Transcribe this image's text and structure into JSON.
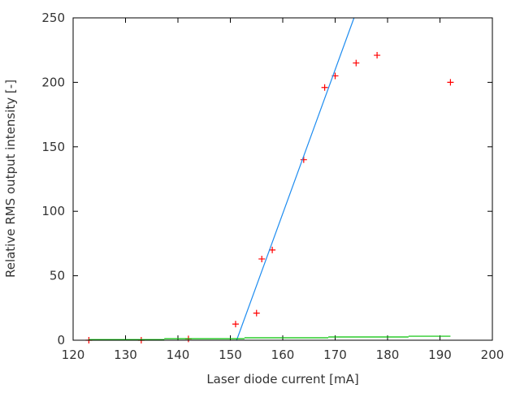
{
  "chart_data": {
    "type": "scatter",
    "title": "",
    "xlabel": "Laser diode current [mA]",
    "ylabel": "Relative RMS output intensity [-]",
    "xlim": [
      120,
      200
    ],
    "ylim": [
      0,
      250
    ],
    "xticks": [
      120,
      130,
      140,
      150,
      160,
      170,
      180,
      190,
      200
    ],
    "yticks": [
      0,
      50,
      100,
      150,
      200,
      250
    ],
    "grid": false,
    "legend": "none",
    "series": [
      {
        "type": "points",
        "marker": "plus",
        "color": "#ff0000",
        "x": [
          123,
          133,
          142,
          151,
          155,
          156,
          158,
          164,
          168,
          170,
          174,
          178,
          192
        ],
        "y": [
          0,
          0,
          1,
          12.5,
          21,
          63,
          70,
          140,
          196,
          205,
          215,
          221,
          200
        ]
      },
      {
        "type": "line",
        "color": "#1e8cf0",
        "x": [
          151.2,
          173.6
        ],
        "y": [
          0,
          250
        ]
      },
      {
        "type": "step",
        "color": "#00c000",
        "x": [
          123,
          137.4,
          152.7,
          168.7,
          184,
          192
        ],
        "y": [
          0.5,
          1.2,
          1.9,
          2.5,
          3.1,
          3.1
        ]
      }
    ]
  }
}
